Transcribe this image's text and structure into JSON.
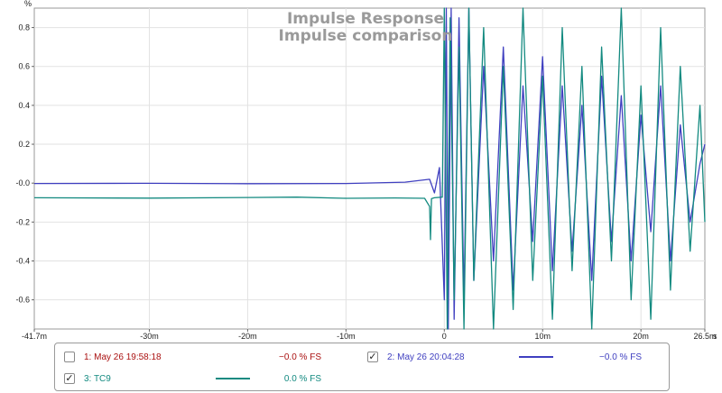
{
  "chart_data": {
    "type": "line",
    "title": "Impulse Response",
    "subtitle": "Impulse comparison",
    "ylabel": "%",
    "xlabel": "s",
    "xlim": [
      -41.7,
      26.5
    ],
    "ylim": [
      -0.75,
      0.9
    ],
    "x_ticks": [
      {
        "value": -41.7,
        "label": "-41.7m"
      },
      {
        "value": -30,
        "label": "-30m"
      },
      {
        "value": -20,
        "label": "-20m"
      },
      {
        "value": -10,
        "label": "-10m"
      },
      {
        "value": 0,
        "label": "0"
      },
      {
        "value": 10,
        "label": "10m"
      },
      {
        "value": 20,
        "label": "20m"
      },
      {
        "value": 26.5,
        "label": "26.5m"
      }
    ],
    "y_ticks": [
      {
        "value": 0.8,
        "label": "0.8"
      },
      {
        "value": 0.6,
        "label": "0.6"
      },
      {
        "value": 0.4,
        "label": "0.4"
      },
      {
        "value": 0.2,
        "label": "0.2"
      },
      {
        "value": 0.0,
        "label": "-0.0"
      },
      {
        "value": -0.2,
        "label": "-0.2"
      },
      {
        "value": -0.4,
        "label": "-0.4"
      },
      {
        "value": -0.6,
        "label": "-0.6"
      }
    ],
    "grid": true,
    "legend_position": "bottom",
    "series": [
      {
        "name": "1: May 26 19:58:18",
        "checked": false,
        "value_label": "−0.0 % FS",
        "color": "#aa1111",
        "visible": false,
        "x": [],
        "y": []
      },
      {
        "name": "2: May 26 20:04:28",
        "checked": true,
        "value_label": "−0.0 % FS",
        "color": "#4040c0",
        "visible": true,
        "x": [
          -41.7,
          -30,
          -20,
          -10,
          -4,
          -1.5,
          -1.0,
          -0.5,
          0.0,
          0.2,
          0.4,
          0.7,
          1.0,
          1.5,
          2.0,
          2.5,
          3.0,
          4.0,
          5.0,
          6.0,
          7.0,
          8.0,
          9.0,
          10.0,
          11.0,
          12.0,
          13.0,
          14.0,
          15.0,
          16.0,
          17.0,
          18.0,
          19.0,
          20.0,
          21.0,
          22.0,
          23.0,
          24.0,
          25.0,
          26.0,
          26.5
        ],
        "y": [
          -0.002,
          -0.001,
          -0.003,
          -0.002,
          0.005,
          0.02,
          -0.05,
          0.08,
          -0.6,
          0.9,
          -0.75,
          0.9,
          -0.7,
          0.85,
          -0.6,
          0.9,
          -0.5,
          0.6,
          -0.4,
          0.7,
          -0.55,
          0.5,
          -0.3,
          0.65,
          -0.45,
          0.5,
          -0.35,
          0.4,
          -0.5,
          0.55,
          -0.3,
          0.45,
          -0.4,
          0.35,
          -0.25,
          0.5,
          -0.4,
          0.3,
          -0.2,
          0.1,
          0.2
        ]
      },
      {
        "name": "3: TC9",
        "checked": true,
        "value_label": "0.0 % FS",
        "color": "#138a80",
        "visible": true,
        "x": [
          -41.7,
          -30,
          -20,
          -15,
          -10,
          -5,
          -2,
          -1.5,
          -1.4,
          -1.3,
          -1.0,
          -0.2,
          0.0,
          0.3,
          0.6,
          1.0,
          1.5,
          2.0,
          2.5,
          3.0,
          4.0,
          5.0,
          6.0,
          7.0,
          8.0,
          9.0,
          10.0,
          11.0,
          12.0,
          13.0,
          14.0,
          15.0,
          16.0,
          17.0,
          18.0,
          19.0,
          20.0,
          21.0,
          22.0,
          23.0,
          24.0,
          25.0,
          26.0,
          26.5
        ],
        "y": [
          -0.075,
          -0.077,
          -0.074,
          -0.072,
          -0.078,
          -0.076,
          -0.078,
          -0.12,
          -0.29,
          -0.08,
          -0.075,
          -0.072,
          0.9,
          -0.75,
          0.85,
          -0.6,
          0.7,
          -0.75,
          0.9,
          -0.5,
          0.8,
          -0.75,
          0.6,
          -0.65,
          0.9,
          -0.5,
          0.55,
          -0.7,
          0.8,
          -0.45,
          0.6,
          -0.75,
          0.7,
          -0.4,
          0.9,
          -0.6,
          0.5,
          -0.7,
          0.8,
          -0.55,
          0.6,
          -0.35,
          0.4,
          -0.2
        ]
      }
    ]
  }
}
